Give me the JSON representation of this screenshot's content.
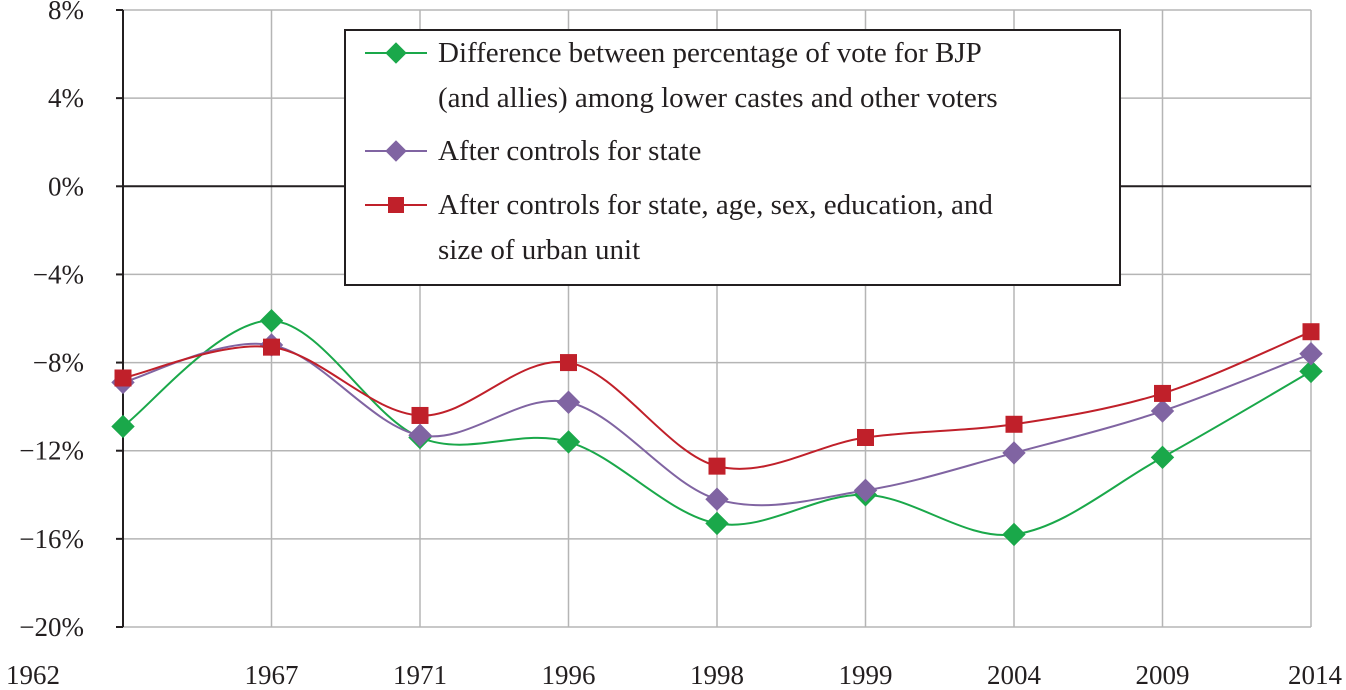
{
  "chart_data": {
    "type": "line",
    "title": "",
    "xlabel": "",
    "ylabel": "",
    "categories": [
      "1962",
      "1967",
      "1971",
      "1996",
      "1998",
      "1999",
      "2004",
      "2009",
      "2014"
    ],
    "ylim": [
      -20,
      8
    ],
    "yticks": [
      8,
      4,
      0,
      -4,
      -8,
      -12,
      -16,
      -20
    ],
    "ytick_labels": [
      "8%",
      "4%",
      "0%",
      "−4%",
      "−8%",
      "−12%",
      "−16%",
      "−20%"
    ],
    "grid": true,
    "legend_position": "top-center",
    "series": [
      {
        "name": "Difference between percentage of vote for BJP (and allies) among lower castes and other voters",
        "legend_lines": [
          "Difference between percentage of vote for BJP",
          "(and allies) among lower castes and other voters"
        ],
        "color": "#1aa84a",
        "marker": "diamond",
        "values": [
          -10.9,
          -6.1,
          -11.4,
          -11.6,
          -15.3,
          -14.0,
          -15.8,
          -12.3,
          -8.4
        ]
      },
      {
        "name": "After controls for state",
        "legend_lines": [
          "After controls for state"
        ],
        "color": "#8064a2",
        "marker": "diamond",
        "values": [
          -8.9,
          -7.2,
          -11.3,
          -9.8,
          -14.2,
          -13.8,
          -12.1,
          -10.2,
          -7.6
        ]
      },
      {
        "name": "After controls for state, age, sex, education, and size of urban unit",
        "legend_lines": [
          "After controls for state, age, sex, education, and",
          "size of urban unit"
        ],
        "color": "#c0202a",
        "marker": "square",
        "values": [
          -8.7,
          -7.3,
          -10.4,
          -8.0,
          -12.7,
          -11.4,
          -10.8,
          -9.4,
          -6.6
        ]
      }
    ]
  }
}
